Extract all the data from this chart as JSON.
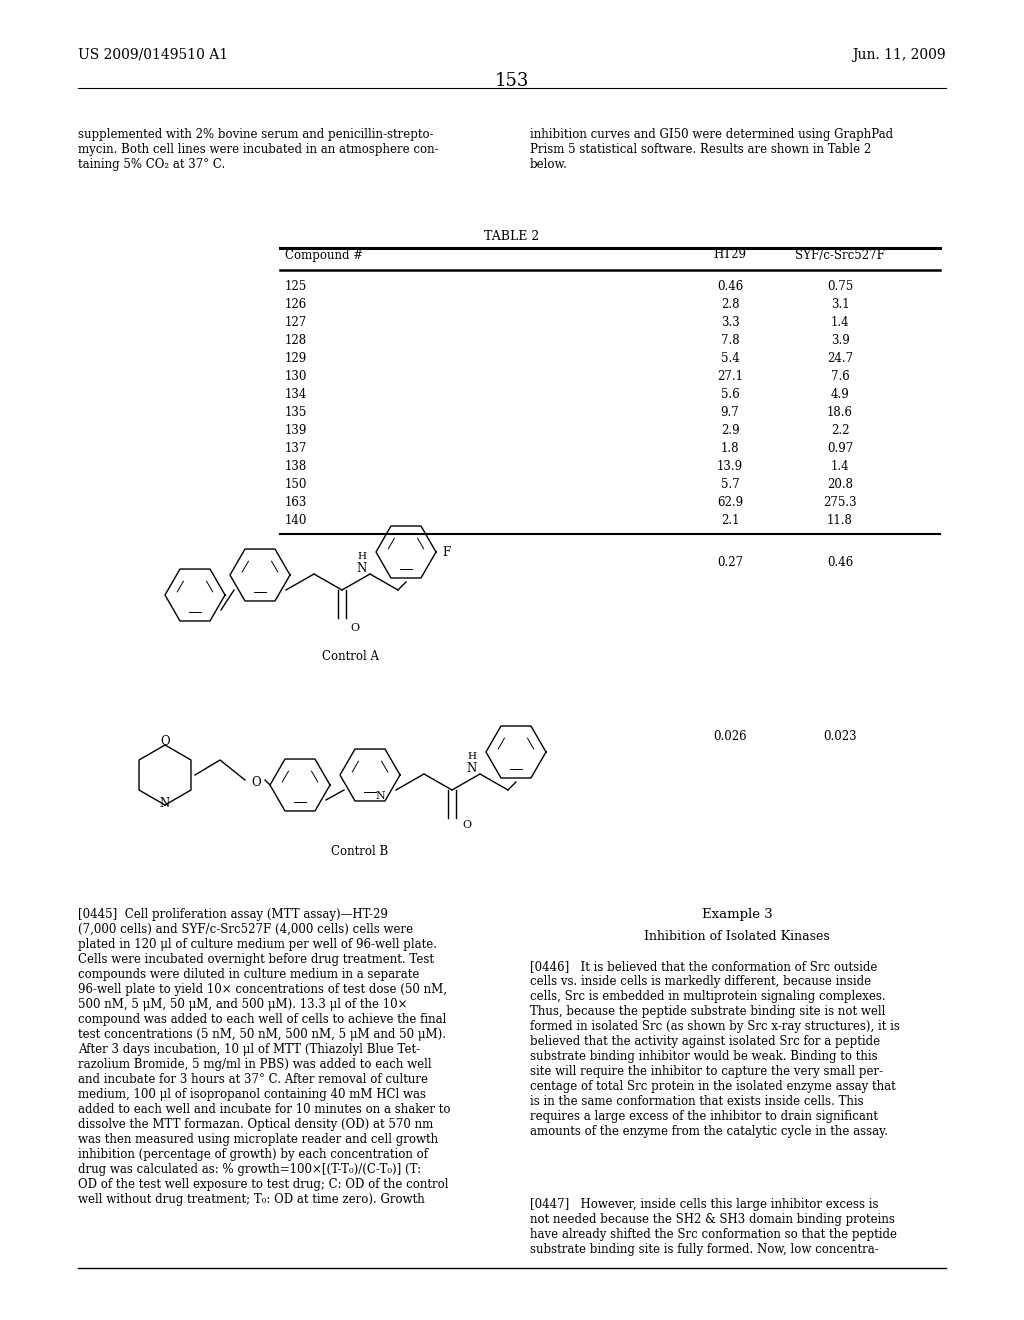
{
  "background_color": "#ffffff",
  "header_left": "US 2009/0149510 A1",
  "header_right": "Jun. 11, 2009",
  "header_center": "153",
  "left_col_top": "supplemented with 2% bovine serum and penicillin-strepto-\nmycin. Both cell lines were incubated in an atmosphere con-\ntaining 5% CO₂ at 37° C.",
  "right_col_top": "inhibition curves and GI50 were determined using GraphPad\nPrism 5 statistical software. Results are shown in Table 2\nbelow.",
  "table_title": "TABLE 2",
  "table_col_headers": [
    "Compound #",
    "HT29",
    "SYF/c-Src527F"
  ],
  "table_rows": [
    [
      "125",
      "0.46",
      "0.75"
    ],
    [
      "126",
      "2.8",
      "3.1"
    ],
    [
      "127",
      "3.3",
      "1.4"
    ],
    [
      "128",
      "7.8",
      "3.9"
    ],
    [
      "129",
      "5.4",
      "24.7"
    ],
    [
      "130",
      "27.1",
      "7.6"
    ],
    [
      "134",
      "5.6",
      "4.9"
    ],
    [
      "135",
      "9.7",
      "18.6"
    ],
    [
      "139",
      "2.9",
      "2.2"
    ],
    [
      "137",
      "1.8",
      "0.97"
    ],
    [
      "138",
      "13.9",
      "1.4"
    ],
    [
      "150",
      "5.7",
      "20.8"
    ],
    [
      "163",
      "62.9",
      "275.3"
    ],
    [
      "140",
      "2.1",
      "11.8"
    ]
  ],
  "control_a_vals": [
    "0.27",
    "0.46"
  ],
  "control_b_vals": [
    "0.026",
    "0.023"
  ],
  "para0445": "[0445]  Cell proliferation assay (MTT assay)—HT-29\n(7,000 cells) and SYF/c-Src527F (4,000 cells) cells were\nplated in 120 μl of culture medium per well of 96-well plate.\nCells were incubated overnight before drug treatment. Test\ncompounds were diluted in culture medium in a separate\n96-well plate to yield 10× concentrations of test dose (50 nM,\n500 nM, 5 μM, 50 μM, and 500 μM). 13.3 μl of the 10×\ncompound was added to each well of cells to achieve the final\ntest concentrations (5 nM, 50 nM, 500 nM, 5 μM and 50 μM).\nAfter 3 days incubation, 10 μl of MTT (Thiazolyl Blue Tet-\nrazolium Bromide, 5 mg/ml in PBS) was added to each well\nand incubate for 3 hours at 37° C. After removal of culture\nmedium, 100 μl of isopropanol containing 40 mM HCl was\nadded to each well and incubate for 10 minutes on a shaker to\ndissolve the MTT formazan. Optical density (OD) at 570 nm\nwas then measured using microplate reader and cell growth\ninhibition (percentage of growth) by each concentration of\ndrug was calculated as: % growth=100×[(T-T₀)/(C-T₀)] (T:\nOD of the test well exposure to test drug; C: OD of the control\nwell without drug treatment; T₀: OD at time zero). Growth",
  "example3_title": "Example 3",
  "example3_subtitle": "Inhibition of Isolated Kinases",
  "para0446": "[0446]   It is believed that the conformation of Src outside\ncells vs. inside cells is markedly different, because inside\ncells, Src is embedded in multiprotein signaling complexes.\nThus, because the peptide substrate binding site is not well\nformed in isolated Src (as shown by Src x-ray structures), it is\nbelieved that the activity against isolated Src for a peptide\nsubstrate binding inhibitor would be weak. Binding to this\nsite will require the inhibitor to capture the very small per-\ncentage of total Src protein in the isolated enzyme assay that\nis in the same conformation that exists inside cells. This\nrequires a large excess of the inhibitor to drain significant\namounts of the enzyme from the catalytic cycle in the assay.",
  "para0447": "[0447]   However, inside cells this large inhibitor excess is\nnot needed because the SH2 & SH3 domain binding proteins\nhave already shifted the Src conformation so that the peptide\nsubstrate binding site is fully formed. Now, low concentra-"
}
